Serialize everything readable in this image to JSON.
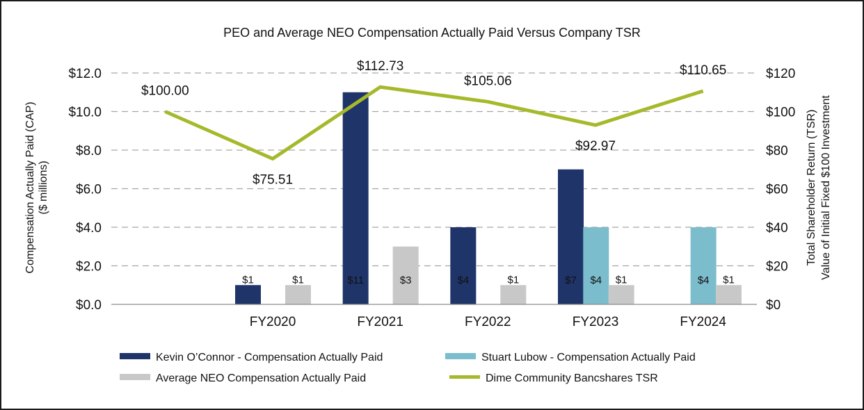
{
  "chart_data": {
    "type": "bar",
    "title": "PEO and Average NEO Compensation Actually Paid Versus Company TSR",
    "categories": [
      "",
      "FY2020",
      "FY2021",
      "FY2022",
      "FY2023",
      "FY2024"
    ],
    "y_left": {
      "label_line1": "Compensation Actually Paid (CAP)",
      "label_line2": "($ millions)",
      "range": [
        0,
        12
      ],
      "ticks": [
        0,
        2,
        4,
        6,
        8,
        10,
        12
      ],
      "tick_labels": [
        "$0.0",
        "$2.0",
        "$4.0",
        "$6.0",
        "$8.0",
        "$10.0",
        "$12.0"
      ]
    },
    "y_right": {
      "label_line1": "Total Shareholder Return (TSR)",
      "label_line2": "Value of Initial Fixed $100 Investment",
      "range": [
        0,
        120
      ],
      "ticks": [
        0,
        20,
        40,
        60,
        80,
        100,
        120
      ],
      "tick_labels": [
        "$0",
        "$20",
        "$40",
        "$60",
        "$80",
        "$100",
        "$120"
      ]
    },
    "grid": true,
    "legend_position": "bottom",
    "series": [
      {
        "name": "Kevin O’Connor - Compensation Actually Paid",
        "kind": "bar",
        "axis": "left",
        "color": "#1F3468",
        "label_color": "#ffffff",
        "values": [
          null,
          1,
          11,
          4,
          7,
          null
        ],
        "labels": [
          "",
          "$1",
          "$11",
          "$4",
          "$7",
          ""
        ]
      },
      {
        "name": "Stuart Lubow - Compensation Actually Paid",
        "kind": "bar",
        "axis": "left",
        "color": "#7BBDCC",
        "label_color": "#111111",
        "values": [
          null,
          null,
          null,
          null,
          4,
          4
        ],
        "labels": [
          "",
          "",
          "",
          "",
          "$4",
          "$4"
        ]
      },
      {
        "name": "Average NEO Compensation Actually Paid",
        "kind": "bar",
        "axis": "left",
        "color": "#C8C8C8",
        "label_color": "#111111",
        "values": [
          null,
          1,
          3,
          1,
          1,
          1
        ],
        "labels": [
          "",
          "$1",
          "$3",
          "$1",
          "$1",
          "$1"
        ]
      },
      {
        "name": "Dime Community Bancshares TSR",
        "kind": "line",
        "axis": "right",
        "color": "#A5B92B",
        "values": [
          100.0,
          75.51,
          112.73,
          105.06,
          92.97,
          110.65
        ],
        "labels": [
          "$100.00",
          "$75.51",
          "$112.73",
          "$105.06",
          "$92.97",
          "$110.65"
        ]
      }
    ],
    "legend": [
      {
        "label": "Kevin O’Connor - Compensation Actually Paid",
        "color": "#1F3468",
        "kind": "bar"
      },
      {
        "label": "Stuart Lubow - Compensation Actually Paid",
        "color": "#7BBDCC",
        "kind": "bar"
      },
      {
        "label": "Average NEO Compensation Actually Paid",
        "color": "#C8C8C8",
        "kind": "bar"
      },
      {
        "label": "Dime Community Bancshares TSR",
        "color": "#A5B92B",
        "kind": "line"
      }
    ]
  }
}
